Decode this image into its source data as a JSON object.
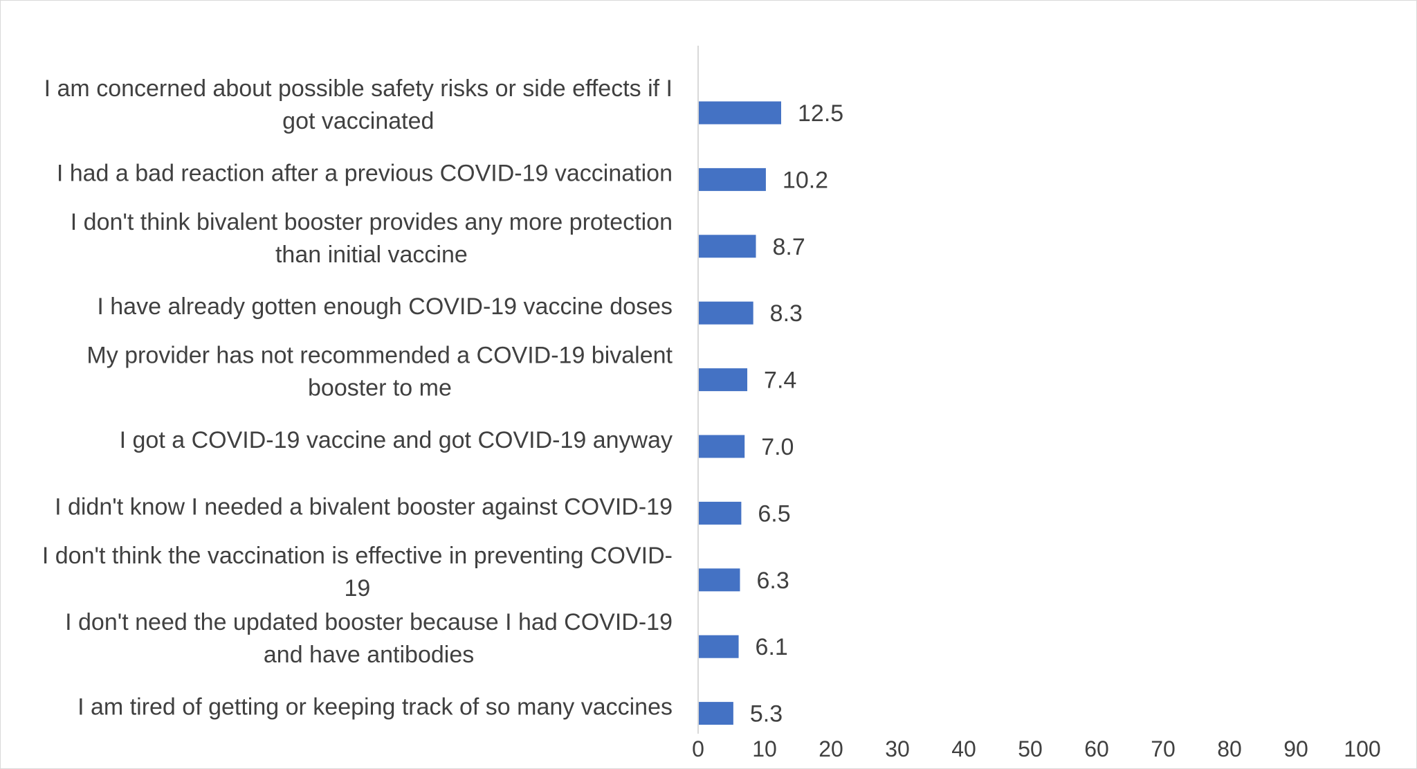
{
  "chart_data": {
    "type": "bar",
    "orientation": "horizontal",
    "title": "",
    "xlabel": "",
    "ylabel": "",
    "xlim": [
      0,
      100
    ],
    "x_ticks": [
      0,
      10,
      20,
      30,
      40,
      50,
      60,
      70,
      80,
      90,
      100
    ],
    "grid": false,
    "legend": "none",
    "bar_color": "#4472C4",
    "text_color": "#404040",
    "categories": [
      [
        "I am concerned about possible safety risks or side effects if I",
        "got vaccinated"
      ],
      [
        "I had a bad reaction after a previous COVID-19 vaccination"
      ],
      [
        "I don't think bivalent booster provides any more protection",
        "than initial vaccine"
      ],
      [
        "I have already gotten enough COVID-19 vaccine doses"
      ],
      [
        "My provider has not recommended a COVID-19 bivalent",
        "booster to me"
      ],
      [
        "I got a COVID-19 vaccine and got COVID-19 anyway"
      ],
      [
        "I didn't know I needed a bivalent booster against COVID-19"
      ],
      [
        "I don't think the vaccination is effective in preventing COVID-",
        "19"
      ],
      [
        "I don't need the updated booster because I had COVID-19",
        "and have antibodies"
      ],
      [
        "I am tired of getting or keeping track of so many vaccines"
      ]
    ],
    "values": [
      12.5,
      10.2,
      8.7,
      8.3,
      7.4,
      7.0,
      6.5,
      6.3,
      6.1,
      5.3
    ],
    "value_labels": [
      "12.5",
      "10.2",
      "8.7",
      "8.3",
      "7.4",
      "7.0",
      "6.5",
      "6.3",
      "6.1",
      "5.3"
    ]
  }
}
